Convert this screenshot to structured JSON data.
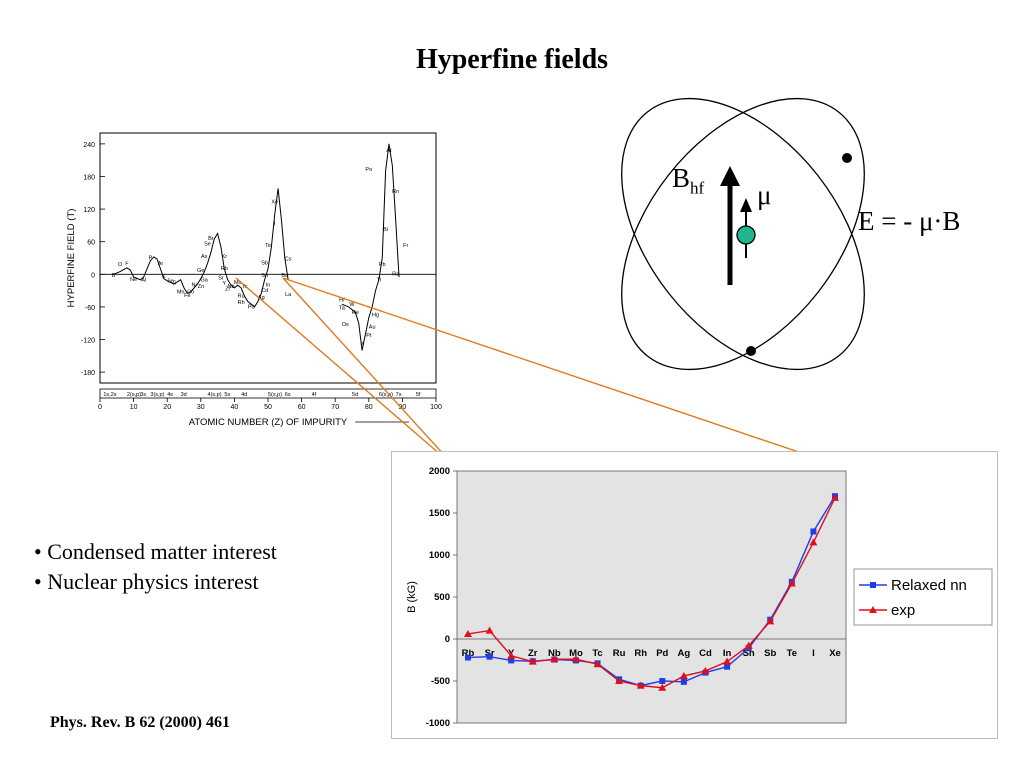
{
  "slide": {
    "title": "Hyperfine fields",
    "bullets": [
      "• Condensed matter interest",
      "• Nuclear physics interest"
    ],
    "citation": "Phys. Rev. B 62 (2000) 461"
  },
  "diagram": {
    "field_label": "B",
    "field_sub": "hf",
    "moment_label": "μ",
    "equation": "E = - μ·B",
    "nucleus_color": "#1fb58f"
  },
  "chart_data": [
    {
      "type": "line",
      "ylabel": "HYPERFINE FIELD (T)",
      "xlabel": "ATOMIC NUMBER (Z) OF IMPURITY",
      "xlim": [
        0,
        100
      ],
      "ylim": [
        -200,
        260
      ],
      "xticks": [
        0,
        10,
        20,
        30,
        40,
        50,
        60,
        70,
        80,
        90,
        100
      ],
      "yticks": [
        240,
        180,
        120,
        60,
        0,
        -60,
        -120,
        -180
      ],
      "ytick_labels": [
        "240",
        "180",
        "120",
        "60",
        "0",
        "-60",
        "-120",
        "-180"
      ],
      "shells": [
        {
          "label": "1s,2s",
          "x": 1
        },
        {
          "label": "2(s,p)",
          "x": 8
        },
        {
          "label": "3s",
          "x": 12
        },
        {
          "label": "3(s,p)",
          "x": 15
        },
        {
          "label": "4s",
          "x": 20
        },
        {
          "label": "3d",
          "x": 24
        },
        {
          "label": "4(s,p)",
          "x": 32
        },
        {
          "label": "5s",
          "x": 37
        },
        {
          "label": "4d",
          "x": 42
        },
        {
          "label": "5(s,p)",
          "x": 50
        },
        {
          "label": "6s",
          "x": 55
        },
        {
          "label": "4f",
          "x": 63
        },
        {
          "label": "5d",
          "x": 75
        },
        {
          "label": "6(s,p)",
          "x": 83
        },
        {
          "label": "7s",
          "x": 88
        },
        {
          "label": "5f",
          "x": 94
        }
      ],
      "element_labels": [
        {
          "t": "B",
          "x": 4,
          "y": -5
        },
        {
          "t": "O",
          "x": 6,
          "y": 15
        },
        {
          "t": "F",
          "x": 8,
          "y": 16
        },
        {
          "t": "Ne",
          "x": 10,
          "y": -12
        },
        {
          "t": "Al",
          "x": 13,
          "y": -13
        },
        {
          "t": "P",
          "x": 15,
          "y": 27
        },
        {
          "t": "Ar",
          "x": 18,
          "y": 17
        },
        {
          "t": "K",
          "x": 19,
          "y": -7
        },
        {
          "t": "Sc",
          "x": 21,
          "y": -15
        },
        {
          "t": "Ti",
          "x": 22,
          "y": -19
        },
        {
          "t": "Mn",
          "x": 24,
          "y": -35
        },
        {
          "t": "Fe",
          "x": 26,
          "y": -42
        },
        {
          "t": "Co",
          "x": 27,
          "y": -35
        },
        {
          "t": "Ni",
          "x": 28,
          "y": -22
        },
        {
          "t": "Zn",
          "x": 30,
          "y": -25
        },
        {
          "t": "Ga",
          "x": 31,
          "y": -13
        },
        {
          "t": "Ge",
          "x": 30,
          "y": 4
        },
        {
          "t": "As",
          "x": 31,
          "y": 30
        },
        {
          "t": "Se",
          "x": 32,
          "y": 53
        },
        {
          "t": "Br",
          "x": 33,
          "y": 63
        },
        {
          "t": "Kr",
          "x": 37,
          "y": 30
        },
        {
          "t": "Rb",
          "x": 37,
          "y": 8
        },
        {
          "t": "Sr",
          "x": 36,
          "y": -10
        },
        {
          "t": "Y",
          "x": 37,
          "y": -20
        },
        {
          "t": "Zr",
          "x": 38,
          "y": -30
        },
        {
          "t": "Nb",
          "x": 39,
          "y": -25
        },
        {
          "t": "Mo",
          "x": 41,
          "y": -18
        },
        {
          "t": "Tc",
          "x": 43,
          "y": -25
        },
        {
          "t": "Ru",
          "x": 42,
          "y": -43
        },
        {
          "t": "Rh",
          "x": 42,
          "y": -55
        },
        {
          "t": "Pd",
          "x": 45,
          "y": -63
        },
        {
          "t": "Ag",
          "x": 48,
          "y": -45
        },
        {
          "t": "Cd",
          "x": 49,
          "y": -33
        },
        {
          "t": "In",
          "x": 50,
          "y": -22
        },
        {
          "t": "Sn",
          "x": 49,
          "y": -5
        },
        {
          "t": "Sb",
          "x": 49,
          "y": 18
        },
        {
          "t": "Te",
          "x": 50,
          "y": 50
        },
        {
          "t": "I",
          "x": 52,
          "y": 90
        },
        {
          "t": "Xe",
          "x": 52,
          "y": 130
        },
        {
          "t": "Cs",
          "x": 56,
          "y": 25
        },
        {
          "t": "Ba",
          "x": 55,
          "y": -5
        },
        {
          "t": "La",
          "x": 56,
          "y": -40
        },
        {
          "t": "Hf",
          "x": 72,
          "y": -50
        },
        {
          "t": "Ta",
          "x": 72,
          "y": -65
        },
        {
          "t": "W",
          "x": 75,
          "y": -58
        },
        {
          "t": "Re",
          "x": 76,
          "y": -73
        },
        {
          "t": "Os",
          "x": 73,
          "y": -95
        },
        {
          "t": "Hg",
          "x": 82,
          "y": -78
        },
        {
          "t": "Au",
          "x": 81,
          "y": -100
        },
        {
          "t": "Pt",
          "x": 80,
          "y": -115
        },
        {
          "t": "Ir",
          "x": 78,
          "y": -130
        },
        {
          "t": "Tl",
          "x": 83,
          "y": -13
        },
        {
          "t": "Pb",
          "x": 84,
          "y": 15
        },
        {
          "t": "Bi",
          "x": 85,
          "y": 80
        },
        {
          "t": "Po",
          "x": 80,
          "y": 190
        },
        {
          "t": "At",
          "x": 86,
          "y": 225
        },
        {
          "t": "Rn",
          "x": 88,
          "y": 150
        },
        {
          "t": "Fr",
          "x": 91,
          "y": 50
        },
        {
          "t": "Ra",
          "x": 88,
          "y": -2
        }
      ],
      "series": [
        {
          "x": [
            4,
            6,
            8,
            9,
            10,
            12,
            13,
            14,
            15,
            16,
            17,
            18,
            19,
            20,
            21,
            22,
            23,
            24,
            25,
            26,
            27,
            28,
            29,
            30,
            31,
            32,
            33,
            34,
            35,
            36,
            37,
            38,
            39,
            40,
            41,
            42,
            43,
            44,
            45,
            46,
            47,
            48,
            49,
            50,
            51,
            52,
            53,
            54,
            55,
            56
          ],
          "y": [
            0,
            5,
            12,
            8,
            -5,
            -10,
            -5,
            10,
            25,
            32,
            28,
            10,
            -8,
            -12,
            -15,
            -18,
            -14,
            -10,
            -25,
            -35,
            -32,
            -25,
            -18,
            -8,
            4,
            20,
            40,
            65,
            75,
            50,
            10,
            -10,
            -20,
            -25,
            -20,
            -25,
            -40,
            -50,
            -55,
            -60,
            -50,
            -35,
            -10,
            10,
            50,
            110,
            158,
            100,
            30,
            -10
          ]
        },
        {
          "x": [
            72,
            74,
            76,
            77,
            78,
            79,
            80,
            81,
            82,
            83,
            84,
            85,
            86,
            87,
            88,
            89
          ],
          "y": [
            -55,
            -60,
            -70,
            -90,
            -140,
            -110,
            -80,
            -60,
            -30,
            -10,
            30,
            190,
            240,
            200,
            100,
            -5
          ]
        }
      ]
    },
    {
      "type": "line",
      "ylabel": "B (kG)",
      "xlabel": "",
      "ylim": [
        -1000,
        2000
      ],
      "yticks": [
        2000,
        1500,
        1000,
        500,
        0,
        -500,
        -1000
      ],
      "ytick_labels": [
        "2000",
        "1500",
        "1000",
        "500",
        "0",
        "-500",
        "-1000"
      ],
      "categories": [
        "Rb",
        "Sr",
        "Y",
        "Zr",
        "Nb",
        "Mo",
        "Tc",
        "Ru",
        "Rh",
        "Pd",
        "Ag",
        "Cd",
        "In",
        "Sn",
        "Sb",
        "Te",
        "I",
        "Xe"
      ],
      "legend": "right",
      "series": [
        {
          "name": "Relaxed nn",
          "color": "#1f3de8",
          "values": [
            -220,
            -210,
            -255,
            -265,
            -245,
            -255,
            -290,
            -480,
            -555,
            -500,
            -510,
            -400,
            -330,
            -110,
            230,
            680,
            1280,
            1700
          ]
        },
        {
          "name": "exp",
          "color": "#e0101a",
          "values": [
            60,
            100,
            -200,
            -270,
            -240,
            -240,
            -300,
            -500,
            -555,
            -580,
            -440,
            -380,
            -270,
            -80,
            210,
            660,
            1150,
            1680
          ]
        }
      ]
    }
  ]
}
